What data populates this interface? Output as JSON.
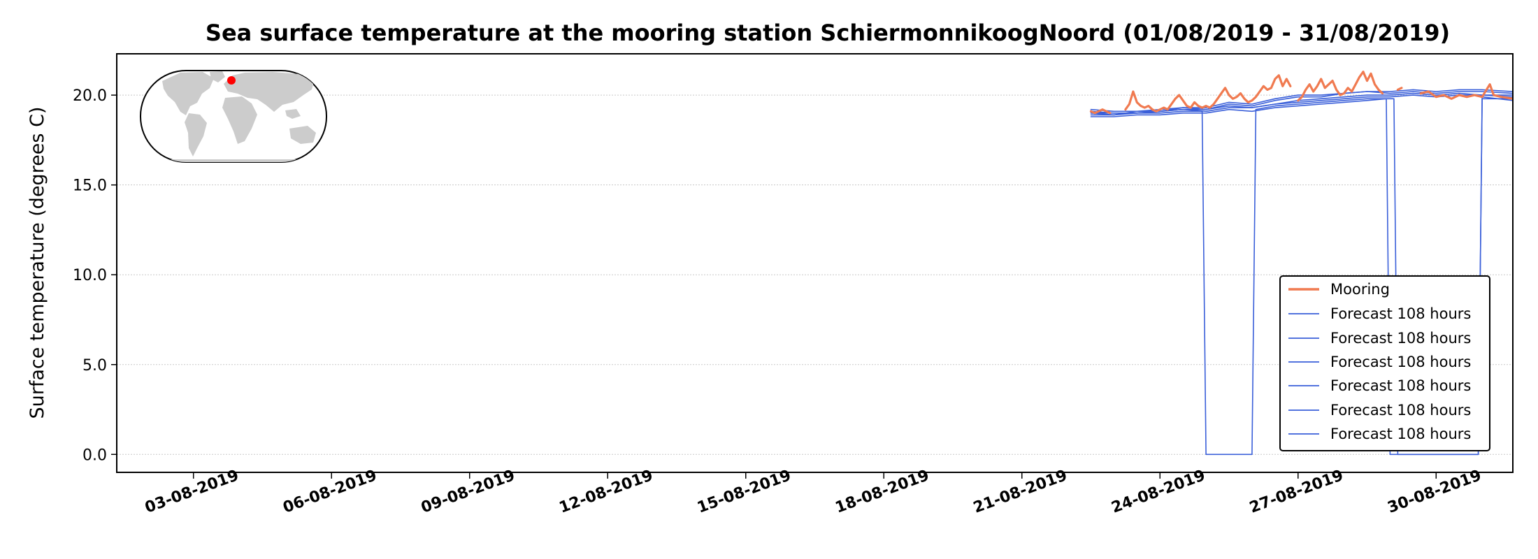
{
  "chart_data": {
    "type": "line",
    "title": "Sea surface temperature at the mooring station SchiermonnikoogNoord (01/08/2019 - 31/08/2019)",
    "xlabel": "",
    "ylabel": "Surface temperature (degrees C)",
    "xlim": [
      "2019-08-01T08:00",
      "2019-08-31T16:00"
    ],
    "ylim": [
      -1.0,
      22.3
    ],
    "yticks": [
      0.0,
      5.0,
      10.0,
      15.0,
      20.0
    ],
    "ytick_labels": [
      "0.0",
      "5.0",
      "10.0",
      "15.0",
      "20.0"
    ],
    "xticks": [
      "2019-08-03",
      "2019-08-06",
      "2019-08-09",
      "2019-08-12",
      "2019-08-15",
      "2019-08-18",
      "2019-08-21",
      "2019-08-24",
      "2019-08-27",
      "2019-08-30"
    ],
    "xtick_labels": [
      "03-08-2019",
      "06-08-2019",
      "09-08-2019",
      "12-08-2019",
      "15-08-2019",
      "18-08-2019",
      "21-08-2019",
      "24-08-2019",
      "27-08-2019",
      "30-08-2019"
    ],
    "grid": "horizontal",
    "legend_position": "lower right",
    "inset": "world map with station marker",
    "colors": {
      "mooring": "#f07a50",
      "forecast": "#3a5fd9",
      "marker": "#ff0000",
      "land": "#cccccc",
      "grid": "#c8c8c8"
    },
    "series": [
      {
        "name": "Mooring",
        "color": "#f07a50",
        "linewidth": 3.2,
        "segments": [
          [
            [
              "2019-08-22T12:00",
              19.1
            ],
            [
              "2019-08-22T14:00",
              19.0
            ],
            [
              "2019-08-22T16:00",
              19.1
            ],
            [
              "2019-08-22T18:00",
              19.2
            ],
            [
              "2019-08-22T20:00",
              19.1
            ],
            [
              "2019-08-22T22:00",
              19.0
            ]
          ],
          [
            [
              "2019-08-23T06:00",
              19.2
            ],
            [
              "2019-08-23T08:00",
              19.5
            ],
            [
              "2019-08-23T10:00",
              20.2
            ],
            [
              "2019-08-23T12:00",
              19.6
            ],
            [
              "2019-08-23T14:00",
              19.4
            ],
            [
              "2019-08-23T16:00",
              19.3
            ],
            [
              "2019-08-23T18:00",
              19.4
            ],
            [
              "2019-08-23T20:00",
              19.2
            ],
            [
              "2019-08-23T22:00",
              19.1
            ],
            [
              "2019-08-24T00:00",
              19.2
            ],
            [
              "2019-08-24T02:00",
              19.3
            ],
            [
              "2019-08-24T04:00",
              19.2
            ],
            [
              "2019-08-24T06:00",
              19.5
            ],
            [
              "2019-08-24T08:00",
              19.8
            ],
            [
              "2019-08-24T10:00",
              20.0
            ],
            [
              "2019-08-24T12:00",
              19.7
            ],
            [
              "2019-08-24T14:00",
              19.4
            ],
            [
              "2019-08-24T16:00",
              19.3
            ],
            [
              "2019-08-24T18:00",
              19.6
            ],
            [
              "2019-08-24T20:00",
              19.4
            ],
            [
              "2019-08-24T22:00",
              19.3
            ],
            [
              "2019-08-25T00:00",
              19.4
            ],
            [
              "2019-08-25T02:00",
              19.3
            ],
            [
              "2019-08-25T04:00",
              19.5
            ],
            [
              "2019-08-25T06:00",
              19.8
            ],
            [
              "2019-08-25T08:00",
              20.1
            ],
            [
              "2019-08-25T10:00",
              20.4
            ],
            [
              "2019-08-25T12:00",
              20.0
            ],
            [
              "2019-08-25T14:00",
              19.8
            ],
            [
              "2019-08-25T16:00",
              19.9
            ],
            [
              "2019-08-25T18:00",
              20.1
            ],
            [
              "2019-08-25T20:00",
              19.8
            ],
            [
              "2019-08-25T22:00",
              19.6
            ],
            [
              "2019-08-26T00:00",
              19.7
            ],
            [
              "2019-08-26T02:00",
              19.9
            ],
            [
              "2019-08-26T04:00",
              20.2
            ],
            [
              "2019-08-26T06:00",
              20.5
            ],
            [
              "2019-08-26T08:00",
              20.3
            ],
            [
              "2019-08-26T10:00",
              20.4
            ],
            [
              "2019-08-26T12:00",
              20.9
            ],
            [
              "2019-08-26T14:00",
              21.1
            ],
            [
              "2019-08-26T16:00",
              20.5
            ],
            [
              "2019-08-26T18:00",
              20.9
            ],
            [
              "2019-08-26T20:00",
              20.5
            ]
          ],
          [
            [
              "2019-08-27T00:00",
              19.7
            ],
            [
              "2019-08-27T02:00",
              19.9
            ],
            [
              "2019-08-27T04:00",
              20.3
            ],
            [
              "2019-08-27T06:00",
              20.6
            ],
            [
              "2019-08-27T08:00",
              20.2
            ],
            [
              "2019-08-27T10:00",
              20.5
            ],
            [
              "2019-08-27T12:00",
              20.9
            ],
            [
              "2019-08-27T14:00",
              20.4
            ],
            [
              "2019-08-27T16:00",
              20.6
            ],
            [
              "2019-08-27T18:00",
              20.8
            ],
            [
              "2019-08-27T20:00",
              20.3
            ],
            [
              "2019-08-27T22:00",
              20.0
            ],
            [
              "2019-08-28T00:00",
              20.1
            ],
            [
              "2019-08-28T02:00",
              20.4
            ],
            [
              "2019-08-28T04:00",
              20.2
            ],
            [
              "2019-08-28T06:00",
              20.6
            ],
            [
              "2019-08-28T08:00",
              21.0
            ],
            [
              "2019-08-28T10:00",
              21.3
            ],
            [
              "2019-08-28T12:00",
              20.8
            ],
            [
              "2019-08-28T14:00",
              21.2
            ],
            [
              "2019-08-28T16:00",
              20.6
            ],
            [
              "2019-08-28T18:00",
              20.3
            ],
            [
              "2019-08-28T20:00",
              20.1
            ]
          ],
          [
            [
              "2019-08-29T04:00",
              20.3
            ],
            [
              "2019-08-29T06:00",
              20.4
            ]
          ],
          [
            [
              "2019-08-29T16:00",
              20.1
            ],
            [
              "2019-08-29T20:00",
              20.2
            ],
            [
              "2019-08-30T00:00",
              19.9
            ],
            [
              "2019-08-30T04:00",
              20.0
            ],
            [
              "2019-08-30T08:00",
              19.8
            ],
            [
              "2019-08-30T12:00",
              20.0
            ],
            [
              "2019-08-30T16:00",
              19.9
            ],
            [
              "2019-08-30T20:00",
              20.0
            ],
            [
              "2019-08-31T00:00",
              19.9
            ],
            [
              "2019-08-31T04:00",
              20.6
            ],
            [
              "2019-08-31T06:00",
              20.0
            ],
            [
              "2019-08-31T10:00",
              19.9
            ],
            [
              "2019-08-31T16:00",
              19.8
            ]
          ]
        ]
      },
      {
        "name": "Forecast 108 hours",
        "color": "#3a5fd9",
        "linewidth": 1.6,
        "segments": [
          [
            [
              "2019-08-22T12:00",
              18.9
            ],
            [
              "2019-08-23T00:00",
              18.9
            ],
            [
              "2019-08-23T12:00",
              19.0
            ],
            [
              "2019-08-24T00:00",
              19.0
            ],
            [
              "2019-08-24T12:00",
              19.1
            ],
            [
              "2019-08-24T22:00",
              19.1
            ],
            [
              "2019-08-25T00:00",
              0.0
            ],
            [
              "2019-08-26T00:00",
              0.0
            ],
            [
              "2019-08-26T02:00",
              19.2
            ],
            [
              "2019-08-26T12:00",
              19.4
            ],
            [
              "2019-08-27T00:00",
              19.5
            ],
            [
              "2019-08-27T12:00",
              19.6
            ],
            [
              "2019-08-28T00:00",
              19.7
            ],
            [
              "2019-08-28T12:00",
              19.8
            ],
            [
              "2019-08-29T02:00",
              19.8
            ],
            [
              "2019-08-29T04:00",
              0.0
            ],
            [
              "2019-08-30T22:00",
              0.0
            ],
            [
              "2019-08-31T00:00",
              19.9
            ],
            [
              "2019-08-31T16:00",
              19.7
            ]
          ]
        ]
      },
      {
        "name": "Forecast 108 hours",
        "color": "#3a5fd9",
        "linewidth": 1.6,
        "segments": [
          [
            [
              "2019-08-22T12:00",
              19.1
            ],
            [
              "2019-08-23T00:00",
              19.0
            ],
            [
              "2019-08-23T12:00",
              19.0
            ],
            [
              "2019-08-24T00:00",
              19.1
            ],
            [
              "2019-08-24T12:00",
              19.2
            ],
            [
              "2019-08-25T00:00",
              19.2
            ],
            [
              "2019-08-25T12:00",
              19.4
            ],
            [
              "2019-08-26T00:00",
              19.3
            ],
            [
              "2019-08-26T12:00",
              19.5
            ],
            [
              "2019-08-27T00:00",
              19.7
            ],
            [
              "2019-08-27T12:00",
              19.8
            ],
            [
              "2019-08-28T00:00",
              19.9
            ],
            [
              "2019-08-28T12:00",
              20.0
            ],
            [
              "2019-08-29T00:00",
              20.0
            ],
            [
              "2019-08-29T12:00",
              20.1
            ],
            [
              "2019-08-30T00:00",
              20.0
            ],
            [
              "2019-08-30T12:00",
              20.1
            ],
            [
              "2019-08-31T00:00",
              20.0
            ],
            [
              "2019-08-31T16:00",
              20.0
            ]
          ]
        ]
      },
      {
        "name": "Forecast 108 hours",
        "color": "#3a5fd9",
        "linewidth": 1.6,
        "segments": [
          [
            [
              "2019-08-22T12:00",
              19.0
            ],
            [
              "2019-08-23T00:00",
              18.9
            ],
            [
              "2019-08-23T12:00",
              19.1
            ],
            [
              "2019-08-24T00:00",
              19.1
            ],
            [
              "2019-08-24T12:00",
              19.3
            ],
            [
              "2019-08-25T00:00",
              19.2
            ],
            [
              "2019-08-25T12:00",
              19.5
            ],
            [
              "2019-08-26T00:00",
              19.4
            ],
            [
              "2019-08-26T12:00",
              19.7
            ],
            [
              "2019-08-27T00:00",
              19.9
            ],
            [
              "2019-08-27T12:00",
              19.9
            ],
            [
              "2019-08-28T00:00",
              20.1
            ],
            [
              "2019-08-28T12:00",
              20.2
            ],
            [
              "2019-08-29T00:00",
              20.1
            ],
            [
              "2019-08-29T12:00",
              20.2
            ],
            [
              "2019-08-30T00:00",
              20.1
            ],
            [
              "2019-08-30T12:00",
              20.2
            ],
            [
              "2019-08-31T00:00",
              20.2
            ],
            [
              "2019-08-31T16:00",
              20.1
            ]
          ]
        ]
      },
      {
        "name": "Forecast 108 hours",
        "color": "#3a5fd9",
        "linewidth": 1.6,
        "segments": [
          [
            [
              "2019-08-22T12:00",
              18.8
            ],
            [
              "2019-08-23T00:00",
              18.8
            ],
            [
              "2019-08-23T12:00",
              18.9
            ],
            [
              "2019-08-24T00:00",
              18.9
            ],
            [
              "2019-08-24T12:00",
              19.0
            ],
            [
              "2019-08-25T00:00",
              19.0
            ],
            [
              "2019-08-25T12:00",
              19.2
            ],
            [
              "2019-08-26T00:00",
              19.1
            ],
            [
              "2019-08-26T12:00",
              19.3
            ],
            [
              "2019-08-27T00:00",
              19.4
            ],
            [
              "2019-08-27T12:00",
              19.5
            ],
            [
              "2019-08-28T00:00",
              19.6
            ],
            [
              "2019-08-28T12:00",
              19.7
            ],
            [
              "2019-08-28T22:00",
              19.8
            ],
            [
              "2019-08-29T00:00",
              0.0
            ],
            [
              "2019-08-30T22:00",
              0.0
            ],
            [
              "2019-08-31T00:00",
              19.8
            ],
            [
              "2019-08-31T16:00",
              19.8
            ]
          ]
        ]
      },
      {
        "name": "Forecast 108 hours",
        "color": "#3a5fd9",
        "linewidth": 1.6,
        "segments": [
          [
            [
              "2019-08-22T12:00",
              19.2
            ],
            [
              "2019-08-23T00:00",
              19.1
            ],
            [
              "2019-08-23T12:00",
              19.1
            ],
            [
              "2019-08-24T00:00",
              19.2
            ],
            [
              "2019-08-24T12:00",
              19.3
            ],
            [
              "2019-08-25T00:00",
              19.3
            ],
            [
              "2019-08-25T12:00",
              19.6
            ],
            [
              "2019-08-26T00:00",
              19.5
            ],
            [
              "2019-08-26T12:00",
              19.8
            ],
            [
              "2019-08-27T00:00",
              20.0
            ],
            [
              "2019-08-27T12:00",
              20.0
            ],
            [
              "2019-08-28T00:00",
              20.1
            ],
            [
              "2019-08-28T12:00",
              20.2
            ],
            [
              "2019-08-29T00:00",
              20.2
            ],
            [
              "2019-08-29T12:00",
              20.3
            ],
            [
              "2019-08-30T00:00",
              20.2
            ],
            [
              "2019-08-30T12:00",
              20.3
            ],
            [
              "2019-08-31T00:00",
              20.3
            ],
            [
              "2019-08-31T16:00",
              20.2
            ]
          ]
        ]
      },
      {
        "name": "Forecast 108 hours",
        "color": "#3a5fd9",
        "linewidth": 1.6,
        "segments": [
          [
            [
              "2019-08-22T12:00",
              19.0
            ],
            [
              "2019-08-23T00:00",
              19.0
            ],
            [
              "2019-08-23T12:00",
              19.0
            ],
            [
              "2019-08-24T00:00",
              19.1
            ],
            [
              "2019-08-24T12:00",
              19.2
            ],
            [
              "2019-08-25T00:00",
              19.1
            ],
            [
              "2019-08-25T12:00",
              19.3
            ],
            [
              "2019-08-26T00:00",
              19.3
            ],
            [
              "2019-08-26T12:00",
              19.5
            ],
            [
              "2019-08-27T00:00",
              19.6
            ],
            [
              "2019-08-27T12:00",
              19.7
            ],
            [
              "2019-08-28T00:00",
              19.8
            ],
            [
              "2019-08-28T12:00",
              19.9
            ],
            [
              "2019-08-29T00:00",
              19.9
            ],
            [
              "2019-08-29T12:00",
              20.0
            ],
            [
              "2019-08-30T00:00",
              19.9
            ],
            [
              "2019-08-30T12:00",
              20.0
            ],
            [
              "2019-08-31T00:00",
              20.0
            ],
            [
              "2019-08-31T16:00",
              19.9
            ]
          ]
        ]
      }
    ]
  }
}
